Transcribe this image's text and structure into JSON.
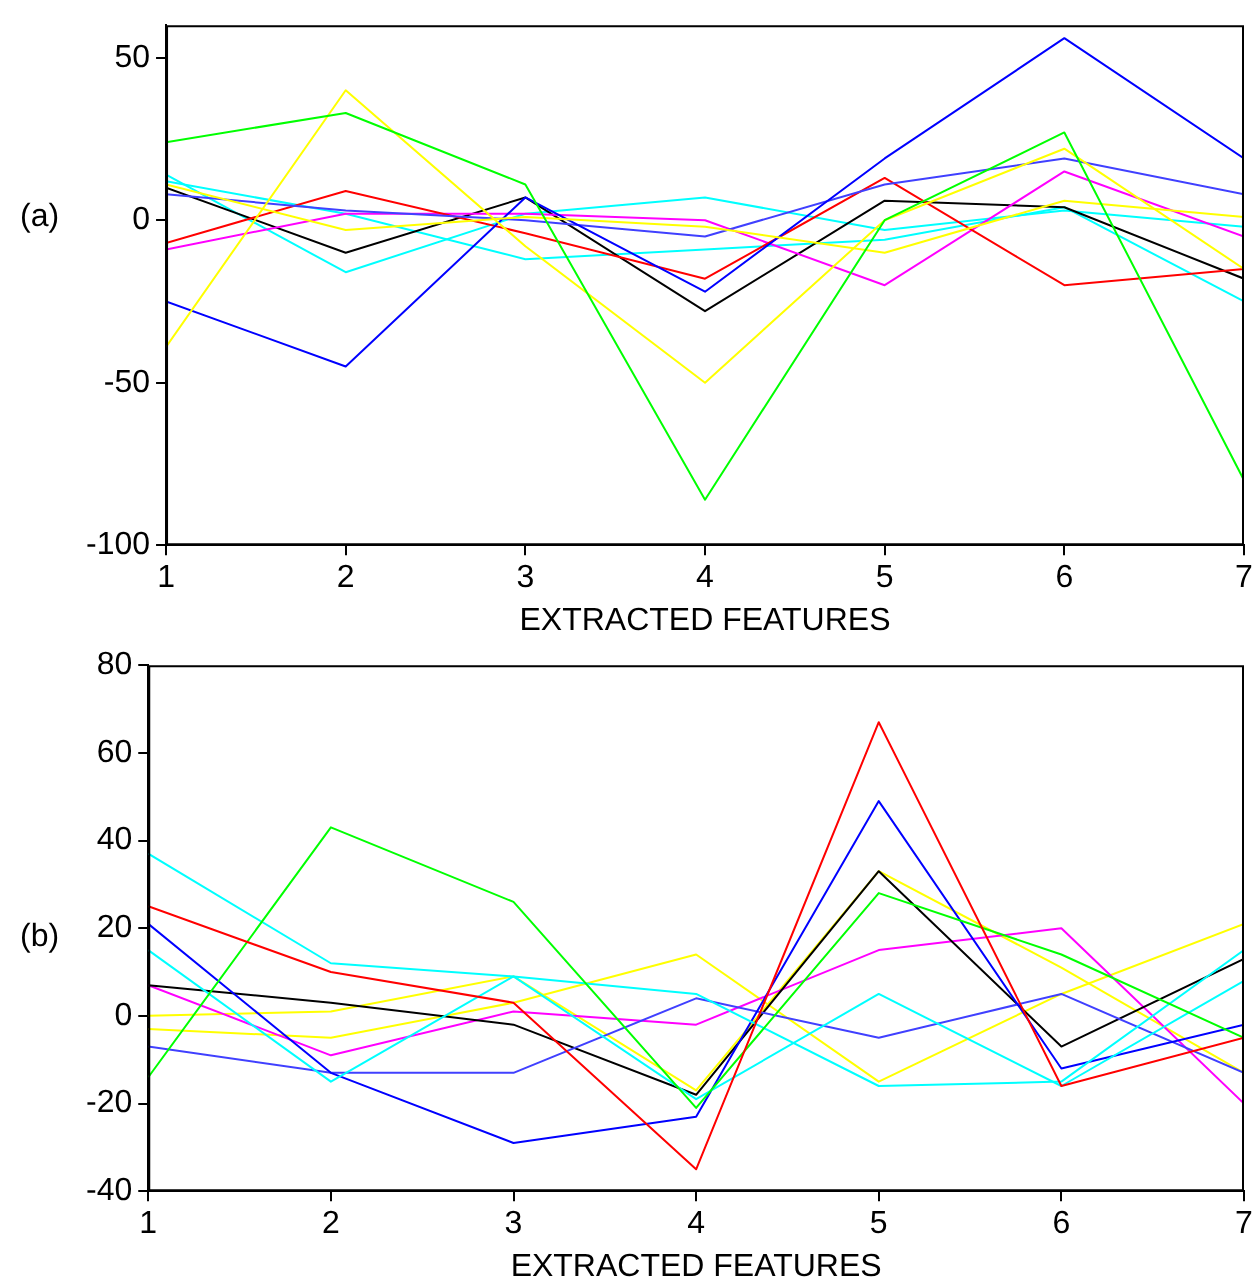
{
  "chart_data": [
    {
      "type": "line",
      "ylabel": "(a)",
      "xlabel": "EXTRACTED FEATURES",
      "x": [
        1,
        2,
        3,
        4,
        5,
        6,
        7
      ],
      "xlim": [
        1,
        7
      ],
      "xticks": [
        1,
        2,
        3,
        4,
        5,
        6,
        7
      ],
      "ylim": [
        -100,
        60
      ],
      "yticks": [
        -100,
        -50,
        0,
        50
      ],
      "grid": false,
      "legend": false,
      "marker": "none",
      "line_style": "solid",
      "series": [
        {
          "color": "#00ff00",
          "values": [
            24,
            33,
            11,
            -86,
            0,
            27,
            -80
          ]
        },
        {
          "color": "#ffff00",
          "values": [
            -39,
            40,
            -8,
            -50,
            0,
            22,
            -15
          ]
        },
        {
          "color": "#ffff00",
          "values": [
            11,
            -3,
            1,
            -2,
            -10,
            6,
            1
          ]
        },
        {
          "color": "#0000ff",
          "values": [
            -25,
            -45,
            7,
            -22,
            19,
            56,
            19
          ]
        },
        {
          "color": "#4040ff",
          "values": [
            8,
            3,
            0,
            -5,
            11,
            19,
            8
          ]
        },
        {
          "color": "#ff0000",
          "values": [
            -7,
            9,
            -4,
            -18,
            13,
            -20,
            -15
          ]
        },
        {
          "color": "#ff00ff",
          "values": [
            -9,
            2,
            2,
            0,
            -20,
            15,
            -5
          ]
        },
        {
          "color": "#000000",
          "values": [
            10,
            -10,
            7,
            -28,
            6,
            4,
            -18
          ]
        },
        {
          "color": "#00ffff",
          "values": [
            14,
            -16,
            2,
            7,
            -3,
            3,
            -2
          ]
        },
        {
          "color": "#00ffff",
          "values": [
            12,
            2,
            -12,
            -9,
            -6,
            4,
            -25
          ]
        }
      ]
    },
    {
      "type": "line",
      "ylabel": "(b)",
      "xlabel": "EXTRACTED FEATURES",
      "x": [
        1,
        2,
        3,
        4,
        5,
        6,
        7
      ],
      "xlim": [
        1,
        7
      ],
      "xticks": [
        1,
        2,
        3,
        4,
        5,
        6,
        7
      ],
      "ylim": [
        -40,
        80
      ],
      "yticks": [
        -40,
        -20,
        0,
        20,
        40,
        60,
        80
      ],
      "grid": false,
      "legend": false,
      "marker": "none",
      "line_style": "solid",
      "series": [
        {
          "color": "#ff0000",
          "values": [
            25,
            10,
            3,
            -35,
            67,
            -16,
            -5
          ]
        },
        {
          "color": "#00ff00",
          "values": [
            -14,
            43,
            26,
            -21,
            28,
            14,
            -5
          ]
        },
        {
          "color": "#00ffff",
          "values": [
            37,
            12,
            9,
            5,
            -16,
            -15,
            15
          ]
        },
        {
          "color": "#00ffff",
          "values": [
            15,
            -15,
            9,
            -19,
            5,
            -16,
            8
          ]
        },
        {
          "color": "#0000ff",
          "values": [
            21,
            -13,
            -29,
            -23,
            49,
            -12,
            -2
          ]
        },
        {
          "color": "#4040ff",
          "values": [
            -7,
            -13,
            -13,
            4,
            -5,
            5,
            -13
          ]
        },
        {
          "color": "#000000",
          "values": [
            7,
            3,
            -2,
            -18,
            33,
            -7,
            13
          ]
        },
        {
          "color": "#ff00ff",
          "values": [
            7,
            -9,
            1,
            -2,
            15,
            20,
            -20
          ]
        },
        {
          "color": "#ffff00",
          "values": [
            0,
            1,
            9,
            -17,
            33,
            11,
            -13
          ]
        },
        {
          "color": "#ffff00",
          "values": [
            -3,
            -5,
            3,
            14,
            -15,
            5,
            21
          ]
        }
      ]
    }
  ]
}
